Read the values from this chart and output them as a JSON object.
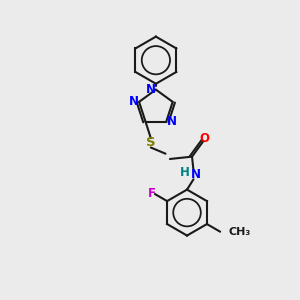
{
  "background_color": "#ebebeb",
  "bond_color": "#1a1a1a",
  "nitrogen_color": "#0000ff",
  "oxygen_color": "#ff0000",
  "sulfur_color": "#808000",
  "fluorine_color": "#cc00cc",
  "hydrogen_color": "#008080",
  "figsize": [
    3.0,
    3.0
  ],
  "dpi": 100,
  "xlim": [
    0,
    10
  ],
  "ylim": [
    0,
    10
  ]
}
